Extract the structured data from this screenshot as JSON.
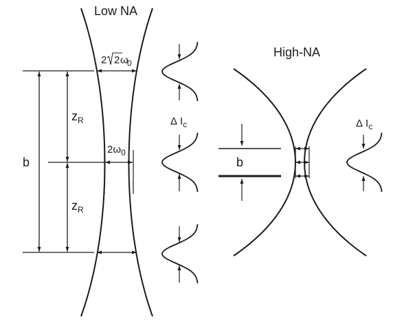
{
  "titles": {
    "low_na": "Low NA",
    "high_na": "High-NA"
  },
  "low_na": {
    "b_label": "b",
    "rayleigh_upper": {
      "main": "z",
      "sub": "R"
    },
    "rayleigh_lower": {
      "main": "z",
      "sub": "R"
    },
    "waist_top": {
      "prefix": "2",
      "radical": "√",
      "under": "2",
      "omega": "ω",
      "sub": "0"
    },
    "waist_center": {
      "prefix": "2",
      "omega": "ω",
      "sub": "0"
    },
    "delta_ic": {
      "delta": "Δ",
      "main": "I",
      "sub": "c"
    }
  },
  "high_na": {
    "b_label": "b",
    "delta_ic": {
      "delta": "Δ",
      "main": "I",
      "sub": "c"
    }
  }
}
